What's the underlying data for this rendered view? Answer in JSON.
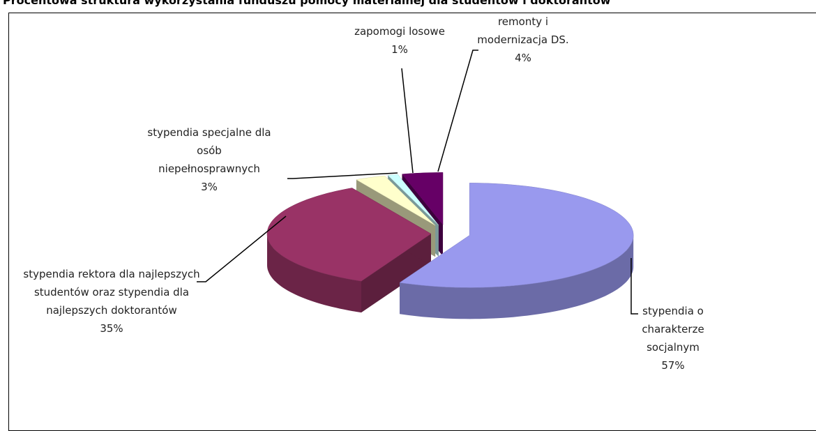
{
  "chart_data": {
    "type": "pie3d",
    "title": "Procentowa struktura wykorzystania funduszu pomocy materialnej dla studentów i doktorantów",
    "categories": [
      "stypendia o charakterze socjalnym",
      "stypendia rektora dla najlepszych studentów oraz stypendia dla najlepszych doktorantów",
      "stypendia specjalne dla osób niepełnosprawnych",
      "zapomogi losowe",
      "remonty i modernizacja DS."
    ],
    "values": [
      57,
      35,
      3,
      1,
      4
    ],
    "value_labels": [
      "57%",
      "35%",
      "3%",
      "1%",
      "4%"
    ],
    "colors": [
      "#9999ee",
      "#993366",
      "#ffffcc",
      "#ccffff",
      "#660066"
    ]
  }
}
